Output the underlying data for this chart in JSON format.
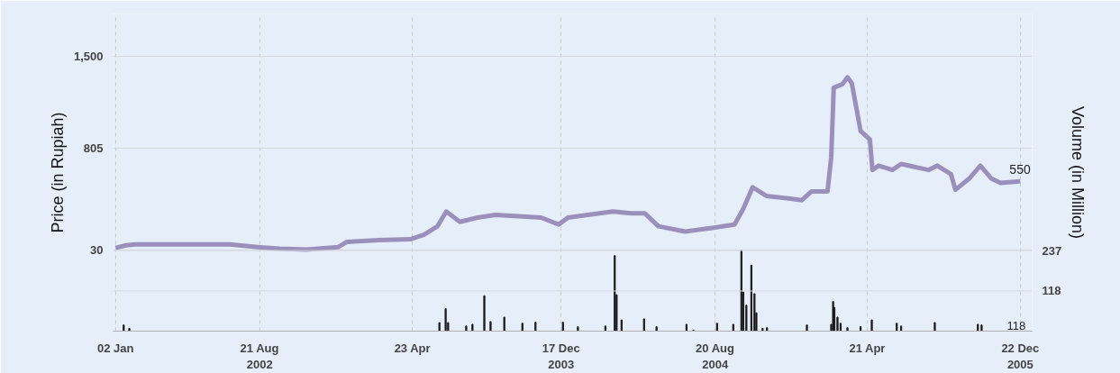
{
  "chart_data": {
    "type": "line",
    "ylabel": "Price (in Rupiah)",
    "y2label": "Volume (in Million)",
    "xlim": [
      "2001-12-29",
      "2006-01-10"
    ],
    "ylim": [
      -590,
      1823
    ],
    "y2lim": [
      0,
      933
    ],
    "xticks": [
      {
        "value": "2002-01-02",
        "label": "02 Jan"
      },
      {
        "value": "2002-08-21",
        "label": "21 Aug\n2002"
      },
      {
        "value": "2003-04-23",
        "label": "23 Apr"
      },
      {
        "value": "2003-12-17",
        "label": "17 Dec\n2003"
      },
      {
        "value": "2004-08-20",
        "label": "20 Aug\n2004"
      },
      {
        "value": "2005-04-21",
        "label": "21 Apr"
      },
      {
        "value": "2005-12-22",
        "label": "22 Dec\n2005"
      }
    ],
    "yticks": [
      30,
      805,
      {
        "value": 1500,
        "label": "1,500"
      }
    ],
    "y2ticks": [
      {
        "value": 0,
        "label": null
      },
      118,
      237
    ],
    "grid": true,
    "marker": "none",
    "line_style": "solid",
    "annotations": [
      {
        "text": "550",
        "x": "2005-12-22",
        "y": 550
      },
      "118"
    ],
    "series": [
      {
        "color": "#9b8fbb",
        "x": [
          "2002-01-02",
          "2002-01-19",
          "2002-02-03",
          "2002-07-04",
          "2002-08-17",
          "2002-09-22",
          "2002-11-04",
          "2002-12-25",
          "2003-01-08",
          "2003-02-28",
          "2003-04-19",
          "2003-05-11",
          "2003-06-02",
          "2003-06-16",
          "2003-07-08",
          "2003-08-05",
          "2003-09-03",
          "2003-11-15",
          "2003-12-13",
          "2003-12-28",
          "2004-03-09",
          "2004-04-07",
          "2004-04-29",
          "2004-05-21",
          "2004-07-03",
          "2004-08-15",
          "2004-09-20",
          "2004-10-04",
          "2004-10-19",
          "2004-11-10",
          "2004-12-16",
          "2005-01-06",
          "2005-01-21",
          "2005-02-16",
          "2005-02-22",
          "2005-02-26",
          "2005-03-12",
          "2005-03-20",
          "2005-03-27",
          "2005-04-10",
          "2005-04-25",
          "2005-04-29",
          "2005-05-09",
          "2005-05-31",
          "2005-06-14",
          "2005-07-28",
          "2005-08-11",
          "2005-09-02",
          "2005-09-09",
          "2005-10-01",
          "2005-10-19",
          "2005-11-06",
          "2005-11-20",
          "2005-12-22"
        ],
        "values": [
          43,
          63,
          70,
          70,
          50,
          37,
          30,
          50,
          89,
          102,
          109,
          142,
          208,
          320,
          241,
          274,
          294,
          274,
          221,
          274,
          320,
          307,
          307,
          208,
          168,
          195,
          221,
          340,
          505,
          439,
          419,
          406,
          472,
          472,
          735,
          1262,
          1289,
          1341,
          1295,
          933,
          867,
          636,
          669,
          636,
          682,
          636,
          669,
          603,
          485,
          570,
          669,
          570,
          537,
          550
        ]
      },
      {
        "type": "bar",
        "axis": "y2",
        "color": "#1a1a1a",
        "x": [
          "2002-01-15",
          "2002-01-24",
          "2003-06-05",
          "2003-06-15",
          "2003-06-19",
          "2003-07-18",
          "2003-07-28",
          "2003-08-16",
          "2003-08-26",
          "2003-09-17",
          "2003-10-16",
          "2003-11-06",
          "2003-12-20",
          "2004-01-13",
          "2004-02-26",
          "2004-03-12",
          "2004-03-15",
          "2004-03-23",
          "2004-04-28",
          "2004-05-18",
          "2004-07-05",
          "2004-07-16",
          "2004-08-23",
          "2004-09-18",
          "2004-10-01",
          "2004-10-04",
          "2004-10-09",
          "2004-10-17",
          "2004-10-22",
          "2004-10-25",
          "2004-11-04",
          "2004-11-11",
          "2005-01-14",
          "2005-02-22",
          "2005-02-25",
          "2005-02-27",
          "2005-03-04",
          "2005-03-09",
          "2005-03-20",
          "2005-04-10",
          "2005-04-28",
          "2005-06-07",
          "2005-06-14",
          "2005-08-07",
          "2005-10-15",
          "2005-10-21"
        ],
        "values": [
          18,
          8,
          25,
          66,
          25,
          15,
          20,
          104,
          28,
          41,
          23,
          26,
          26,
          13,
          15,
          222,
          107,
          33,
          36,
          13,
          20,
          3,
          23,
          20,
          237,
          115,
          76,
          194,
          110,
          54,
          8,
          10,
          18,
          20,
          87,
          69,
          41,
          23,
          10,
          13,
          33,
          23,
          15,
          25,
          20,
          18
        ]
      }
    ]
  }
}
